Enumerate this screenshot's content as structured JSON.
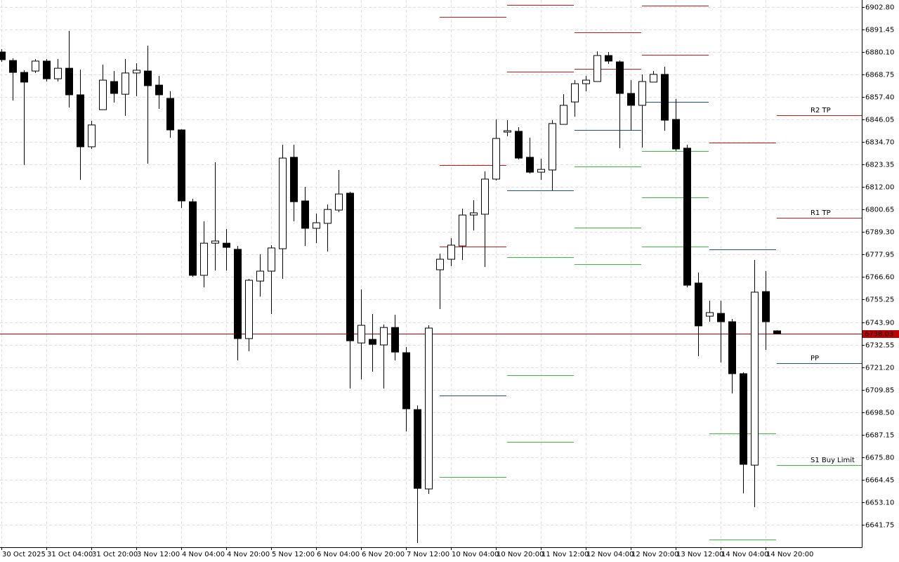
{
  "chart_data": {
    "type": "candlestick",
    "categories": [
      "30 Oct 2025",
      null,
      null,
      null,
      "31 Oct 04:00",
      null,
      null,
      null,
      "31 Oct 20:00",
      null,
      null,
      null,
      "3 Nov 12:00",
      null,
      null,
      null,
      "4 Nov 04:00",
      null,
      null,
      null,
      "4 Nov 20:00",
      null,
      null,
      null,
      "5 Nov 12:00",
      null,
      null,
      null,
      "6 Nov 04:00",
      null,
      null,
      null,
      "6 Nov 20:00",
      null,
      null,
      null,
      "7 Nov 12:00",
      null,
      null,
      null,
      "10 Nov 04:00",
      null,
      null,
      null,
      "10 Nov 20:00",
      null,
      null,
      null,
      "11 Nov 12:00",
      null,
      null,
      null,
      "12 Nov 04:00",
      null,
      null,
      null,
      "12 Nov 20:00",
      null,
      null,
      null,
      "13 Nov 12:00",
      null,
      null,
      null,
      "14 Nov 04:00",
      null,
      null,
      null,
      "14 Nov 20:00",
      null
    ],
    "open": [
      6880.1,
      6875.8,
      6869.8,
      6870.5,
      6875.5,
      6866.6,
      6871.9,
      6858.5,
      6832.3,
      6851.0,
      6865.2,
      6858.8,
      6869.5,
      6870.5,
      6863.4,
      6856.7,
      6840.8,
      6804.6,
      6767.5,
      6783.7,
      6783.7,
      6780.6,
      6735.6,
      6764.6,
      6769.6,
      6780.9,
      6827.0,
      6805.0,
      6791.2,
      6793.7,
      6800.4,
      6808.9,
      6733.4,
      6735.2,
      6732.4,
      6741.2,
      6728.5,
      6699.8,
      6659.8,
      6770.3,
      6775.6,
      6782.3,
      6797.9,
      6798.3,
      6816.0,
      6839.7,
      6840.1,
      6827.0,
      6819.5,
      6820.6,
      6843.6,
      6854.9,
      6864.1,
      6865.2,
      6878.3,
      6875.1,
      6859.2,
      6853.2,
      6864.9,
      6868.8,
      6846.1,
      6831.6,
      6763.6,
      6746.9,
      6748.3,
      6744.1,
      6717.9,
      6671.8,
      6759.3,
      6739.5
    ],
    "high": [
      6881.5,
      6876.9,
      6870.9,
      6876.5,
      6876.5,
      6876.5,
      6890.7,
      6871.2,
      6845.4,
      6873.7,
      6870.5,
      6876.5,
      6874.4,
      6883.3,
      6868.0,
      6860.3,
      6841.1,
      6806.1,
      6794.7,
      6824.5,
      6790.8,
      6782.3,
      6765.7,
      6778.1,
      6782.7,
      6833.3,
      6833.3,
      6812.1,
      6798.6,
      6803.2,
      6820.6,
      6809.6,
      6760.4,
      6748.0,
      6742.7,
      6747.6,
      6731.3,
      6701.9,
      6742.3,
      6778.4,
      6786.2,
      6801.1,
      6805.4,
      6819.9,
      6846.1,
      6845.7,
      6842.2,
      6836.9,
      6826.3,
      6845.7,
      6858.8,
      6865.9,
      6868.0,
      6880.4,
      6880.1,
      6875.8,
      6865.9,
      6868.8,
      6870.5,
      6872.7,
      6856.4,
      6833.3,
      6768.9,
      6754.7,
      6754.7,
      6745.5,
      6718.6,
      6775.2,
      6769.6,
      6739.8
    ],
    "low": [
      6875.1,
      6855.6,
      6823.1,
      6869.5,
      6865.2,
      6865.2,
      6852.1,
      6815.6,
      6831.2,
      6851.0,
      6854.6,
      6847.9,
      6857.8,
      6823.8,
      6851.4,
      6836.9,
      6801.5,
      6766.7,
      6761.4,
      6769.9,
      6769.9,
      6724.6,
      6729.2,
      6756.8,
      6748.0,
      6765.7,
      6794.7,
      6782.3,
      6783.7,
      6779.5,
      6799.3,
      6710.4,
      6715.0,
      6718.9,
      6710.4,
      6724.6,
      6688.8,
      6632.5,
      6657.3,
      6750.5,
      6772.1,
      6775.2,
      6790.1,
      6771.7,
      6815.3,
      6837.6,
      6825.9,
      6818.8,
      6815.6,
      6810.3,
      6843.6,
      6847.5,
      6860.3,
      6865.2,
      6874.1,
      6831.6,
      6840.4,
      6831.9,
      6864.9,
      6840.4,
      6830.1,
      6761.4,
      6726.7,
      6744.1,
      6723.5,
      6707.9,
      6657.6,
      6650.6,
      6729.9,
      6737.9
    ],
    "close": [
      6876.2,
      6869.8,
      6864.9,
      6875.5,
      6866.6,
      6871.9,
      6858.5,
      6832.3,
      6843.3,
      6865.9,
      6859.2,
      6869.5,
      6870.9,
      6863.1,
      6858.5,
      6840.8,
      6805.0,
      6767.5,
      6783.7,
      6784.8,
      6781.6,
      6735.6,
      6765.0,
      6769.6,
      6781.3,
      6826.6,
      6804.6,
      6791.2,
      6794.0,
      6800.7,
      6808.5,
      6734.5,
      6742.3,
      6732.7,
      6741.2,
      6728.8,
      6700.2,
      6660.1,
      6740.9,
      6775.6,
      6782.7,
      6797.9,
      6799.0,
      6816.0,
      6836.5,
      6840.4,
      6826.6,
      6819.5,
      6820.9,
      6844.0,
      6853.2,
      6864.1,
      6865.9,
      6878.3,
      6875.5,
      6859.2,
      6853.2,
      6865.2,
      6868.8,
      6845.7,
      6831.2,
      6762.5,
      6742.0,
      6748.7,
      6744.1,
      6717.9,
      6672.2,
      6759.0,
      6744.1,
      6738.0
    ],
    "ylim": [
      6630.4,
      6906.3
    ],
    "yticks": [
      {
        "value": 6902.8,
        "label": "6902.80"
      },
      6891.45,
      {
        "value": 6880.1,
        "label": "6880.10"
      },
      6868.75,
      {
        "value": 6857.4,
        "label": "6857.40"
      },
      6846.05,
      {
        "value": 6834.7,
        "label": "6834.70"
      },
      6823.35,
      {
        "value": 6812,
        "label": "6812.00"
      },
      6800.65,
      {
        "value": 6789.3,
        "label": "6789.30"
      },
      6777.95,
      {
        "value": 6766.6,
        "label": "6766.60"
      },
      6755.25,
      {
        "value": 6743.9,
        "label": "6743.90"
      },
      6732.55,
      {
        "value": 6721.2,
        "label": "6721.20"
      },
      6709.85,
      {
        "value": 6698.5,
        "label": "6698.50"
      },
      6687.15,
      {
        "value": 6675.8,
        "label": "6675.80"
      },
      6664.45,
      {
        "value": 6653.1,
        "label": "6653.10"
      },
      6641.75
    ],
    "grid": true,
    "current_price": 6738.03,
    "current_price_color": "#c00000",
    "level_colors": {
      "resistance": "#c81818",
      "pivot": "#1c4f9c",
      "support": "#38c038"
    },
    "pivot_levels": [
      {
        "resistance": [
          6897.8,
          6823.1,
          6782.0
        ],
        "pivot": 6706.9,
        "support": [
          6665.8
        ]
      },
      {
        "resistance": [
          6903.8,
          6870.2
        ],
        "pivot": 6810.3,
        "support": [
          6776.7,
          6717.2,
          6683.5
        ]
      },
      {
        "resistance": [
          6890.0,
          6871.6
        ],
        "pivot": 6840.8,
        "support": [
          6822.4,
          6791.5,
          6773.1
        ]
      },
      {
        "resistance": [
          6903.5,
          6878.7
        ],
        "pivot": 6855.0,
        "support": [
          6830.1,
          6806.8,
          6782.0
        ]
      },
      {
        "resistance": [
          6834.4
        ],
        "pivot": 6780.6,
        "support": [
          6687.8,
          6634.3
        ]
      }
    ],
    "current_levels": [
      {
        "name": "R2 TP",
        "value": 6848.2,
        "color": "#c81818"
      },
      {
        "name": "R1 TP",
        "value": 6796.5,
        "color": "#c81818"
      },
      {
        "name": "PP",
        "value": 6723.2,
        "color": "#1c4f9c"
      },
      {
        "name": "S1 Buy Limit",
        "value": 6671.8,
        "color": "#38c038"
      }
    ]
  }
}
